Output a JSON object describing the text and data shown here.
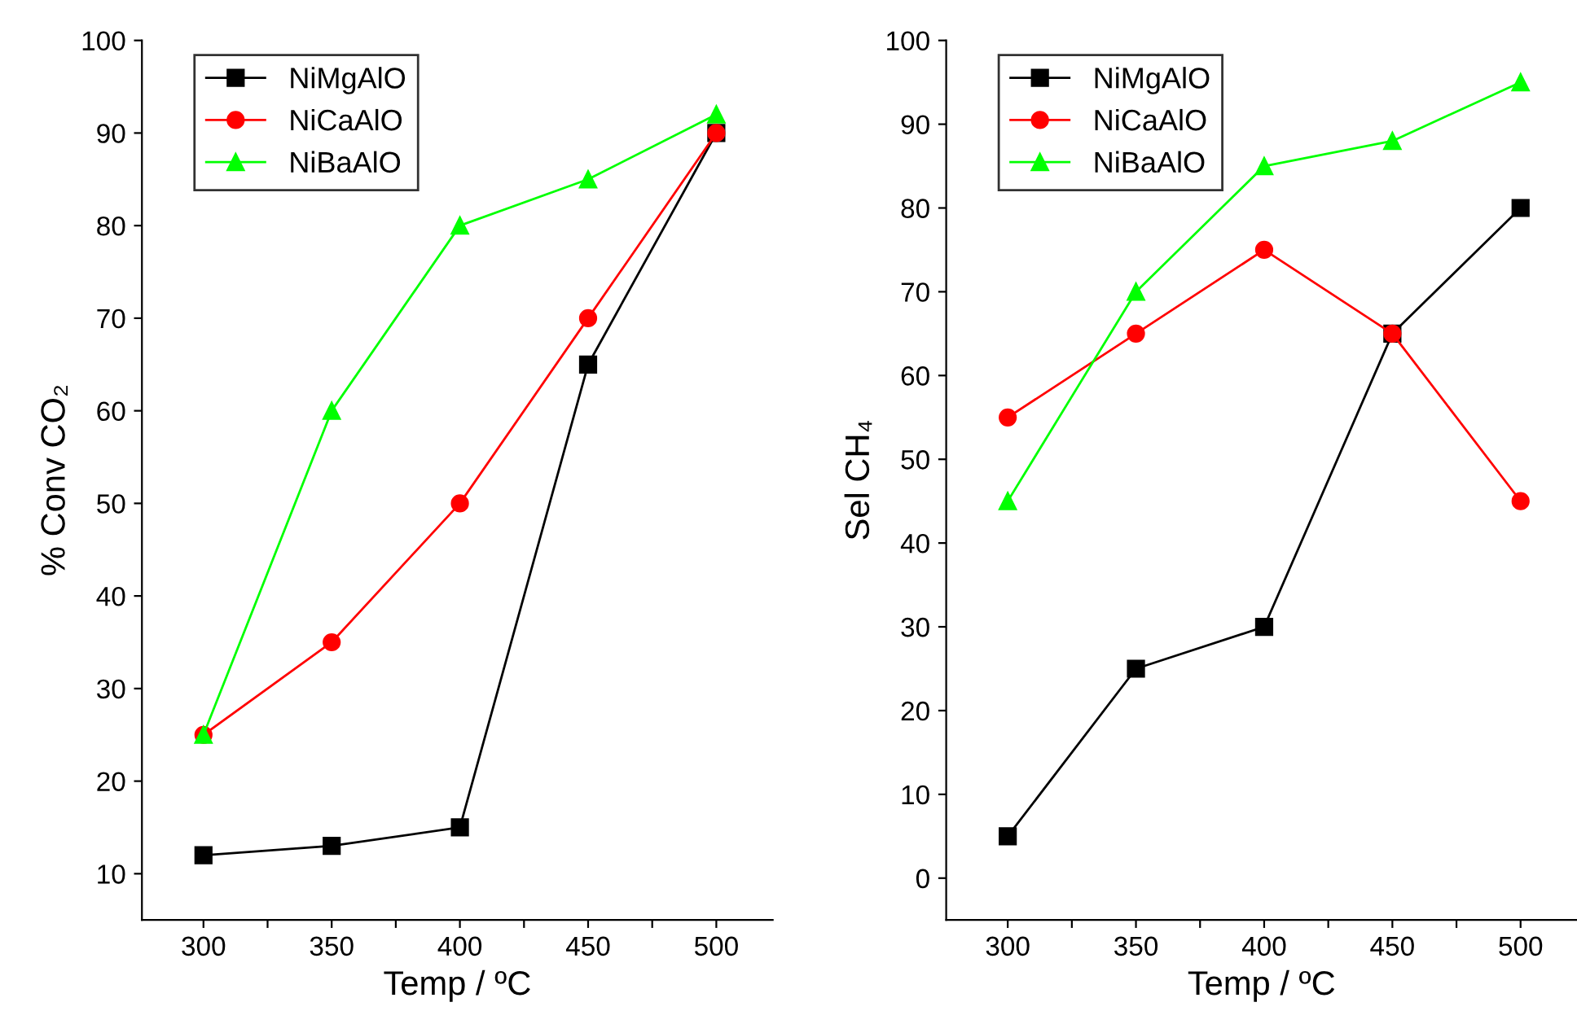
{
  "chart_data": [
    {
      "type": "line",
      "xlabel": "Temp / ºC",
      "ylabel": "% Conv CO₂",
      "x": [
        300,
        350,
        400,
        450,
        500
      ],
      "xlim": [
        276,
        522
      ],
      "ylim": [
        5,
        100
      ],
      "xticks": [
        300,
        {
          "value": 325,
          "label": null
        },
        350,
        {
          "value": 375,
          "label": null
        },
        400,
        {
          "value": 425,
          "label": null
        },
        450,
        {
          "value": 475,
          "label": null
        },
        500
      ],
      "yticks": [
        10,
        20,
        30,
        40,
        50,
        60,
        70,
        80,
        90,
        100
      ],
      "legend": "top left",
      "grid": false,
      "series": [
        {
          "name": "NiMgAlO",
          "color": "#000000",
          "marker": "square",
          "values": [
            12,
            13,
            15,
            65,
            90
          ]
        },
        {
          "name": "NiCaAlO",
          "color": "#ff0000",
          "marker": "circle",
          "values": [
            25,
            35,
            50,
            70,
            90
          ]
        },
        {
          "name": "NiBaAlO",
          "color": "#00ff00",
          "marker": "triangle",
          "values": [
            25,
            60,
            80,
            85,
            92
          ]
        }
      ]
    },
    {
      "type": "line",
      "xlabel": "Temp / ºC",
      "ylabel": "Sel CH₄",
      "x": [
        300,
        350,
        400,
        450,
        500
      ],
      "xlim": [
        276,
        522
      ],
      "ylim": [
        -5,
        100
      ],
      "xticks": [
        300,
        {
          "value": 325,
          "label": null
        },
        350,
        {
          "value": 375,
          "label": null
        },
        400,
        {
          "value": 425,
          "label": null
        },
        450,
        {
          "value": 475,
          "label": null
        },
        500
      ],
      "yticks": [
        0,
        10,
        20,
        30,
        40,
        50,
        60,
        70,
        80,
        90,
        100
      ],
      "legend": "top left",
      "grid": false,
      "series": [
        {
          "name": "NiMgAlO",
          "color": "#000000",
          "marker": "square",
          "values": [
            5,
            25,
            30,
            65,
            80
          ]
        },
        {
          "name": "NiCaAlO",
          "color": "#ff0000",
          "marker": "circle",
          "values": [
            55,
            65,
            75,
            65,
            45
          ]
        },
        {
          "name": "NiBaAlO",
          "color": "#00ff00",
          "marker": "triangle",
          "values": [
            45,
            70,
            85,
            88,
            95
          ]
        }
      ]
    }
  ]
}
